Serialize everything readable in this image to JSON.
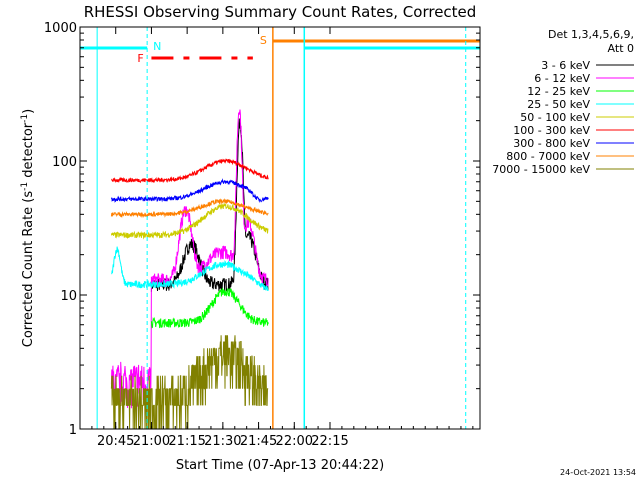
{
  "chart_data": {
    "type": "line",
    "title": "RHESSI Observing Summary Count Rates, Corrected",
    "xlabel": "Start Time (07-Apr-13 20:44:22)",
    "ylabel_main": "Corrected Count Rate (s",
    "ylabel_sup1": "-1",
    "ylabel_mid": " detector",
    "ylabel_sup2": "-1",
    "ylabel_end": ")",
    "y_scale": "log",
    "ylim": [
      1,
      1000
    ],
    "xlim_minutes": [
      20.5,
      23.3
    ],
    "x_ticks": [
      {
        "label": "20:45",
        "min": 20.75
      },
      {
        "label": "21:00",
        "min": 21.0
      },
      {
        "label": "21:15",
        "min": 21.25
      },
      {
        "label": "21:30",
        "min": 21.5
      },
      {
        "label": "21:45",
        "min": 21.75
      },
      {
        "label": "22:00",
        "min": 22.0
      },
      {
        "label": "22:15",
        "min": 22.25
      }
    ],
    "y_ticks": [
      {
        "label": "1",
        "value": 1
      },
      {
        "label": "10",
        "value": 10
      },
      {
        "label": "100",
        "value": 100
      },
      {
        "label": "1000",
        "value": 1000
      }
    ],
    "legend_header": [
      "Det 1,3,4,5,6,9,",
      "Att 0"
    ],
    "legend_position": "right",
    "series": [
      {
        "name": "3 - 6 keV",
        "color": "#000000"
      },
      {
        "name": "6 - 12 keV",
        "color": "#ff00ff"
      },
      {
        "name": "12 - 25 keV",
        "color": "#00ff00"
      },
      {
        "name": "25 - 50 keV",
        "color": "#00ffff"
      },
      {
        "name": "50 - 100 keV",
        "color": "#cccc00"
      },
      {
        "name": "100 - 300 keV",
        "color": "#ff0000"
      },
      {
        "name": "300 - 800 keV",
        "color": "#0000ff"
      },
      {
        "name": "800 - 7000 keV",
        "color": "#ff8000"
      },
      {
        "name": "7000 - 15000 keV",
        "color": "#808000"
      }
    ],
    "annotations": {
      "night_label": "N",
      "flare_label": "F",
      "saa_label": "S"
    },
    "timestamp": "24-Oct-2021 13:54"
  }
}
